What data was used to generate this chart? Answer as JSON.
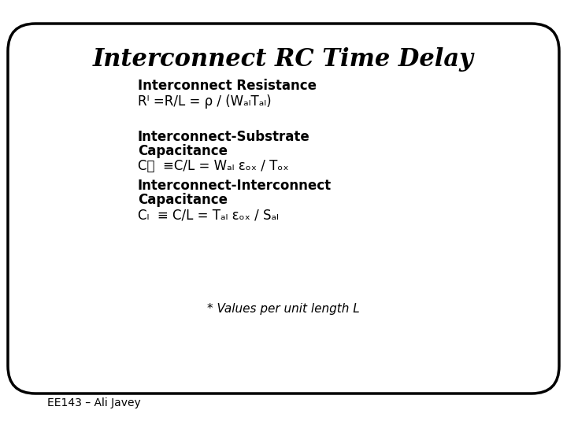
{
  "title": "Interconnect RC Time Delay",
  "background_color": "#ffffff",
  "outer_background": "#ffffff",
  "box_edge_color": "#000000",
  "text_color": "#000000",
  "title_fontsize": 22,
  "body_fontsize": 12,
  "footer_text": "EE143 – Ali Javey",
  "section1_header": "Interconnect Resistance",
  "section1_line1": "Rᴵ =R/L = ρ / (WₐₗTₐₗ)",
  "section2_header": "Interconnect-Substrate",
  "section2_header2": "Capacitance",
  "section2_formula": "Cᵜ  ≡C/L = Wₐₗ εₒₓ / Tₒₓ",
  "section3_header": "Interconnect-Interconnect",
  "section3_header2": "Capacitance",
  "section3_formula": "Cₗ  ≡ C/L = Tₐₗ εₒₓ / Sₐₗ",
  "footnote": "* Values per unit length L"
}
